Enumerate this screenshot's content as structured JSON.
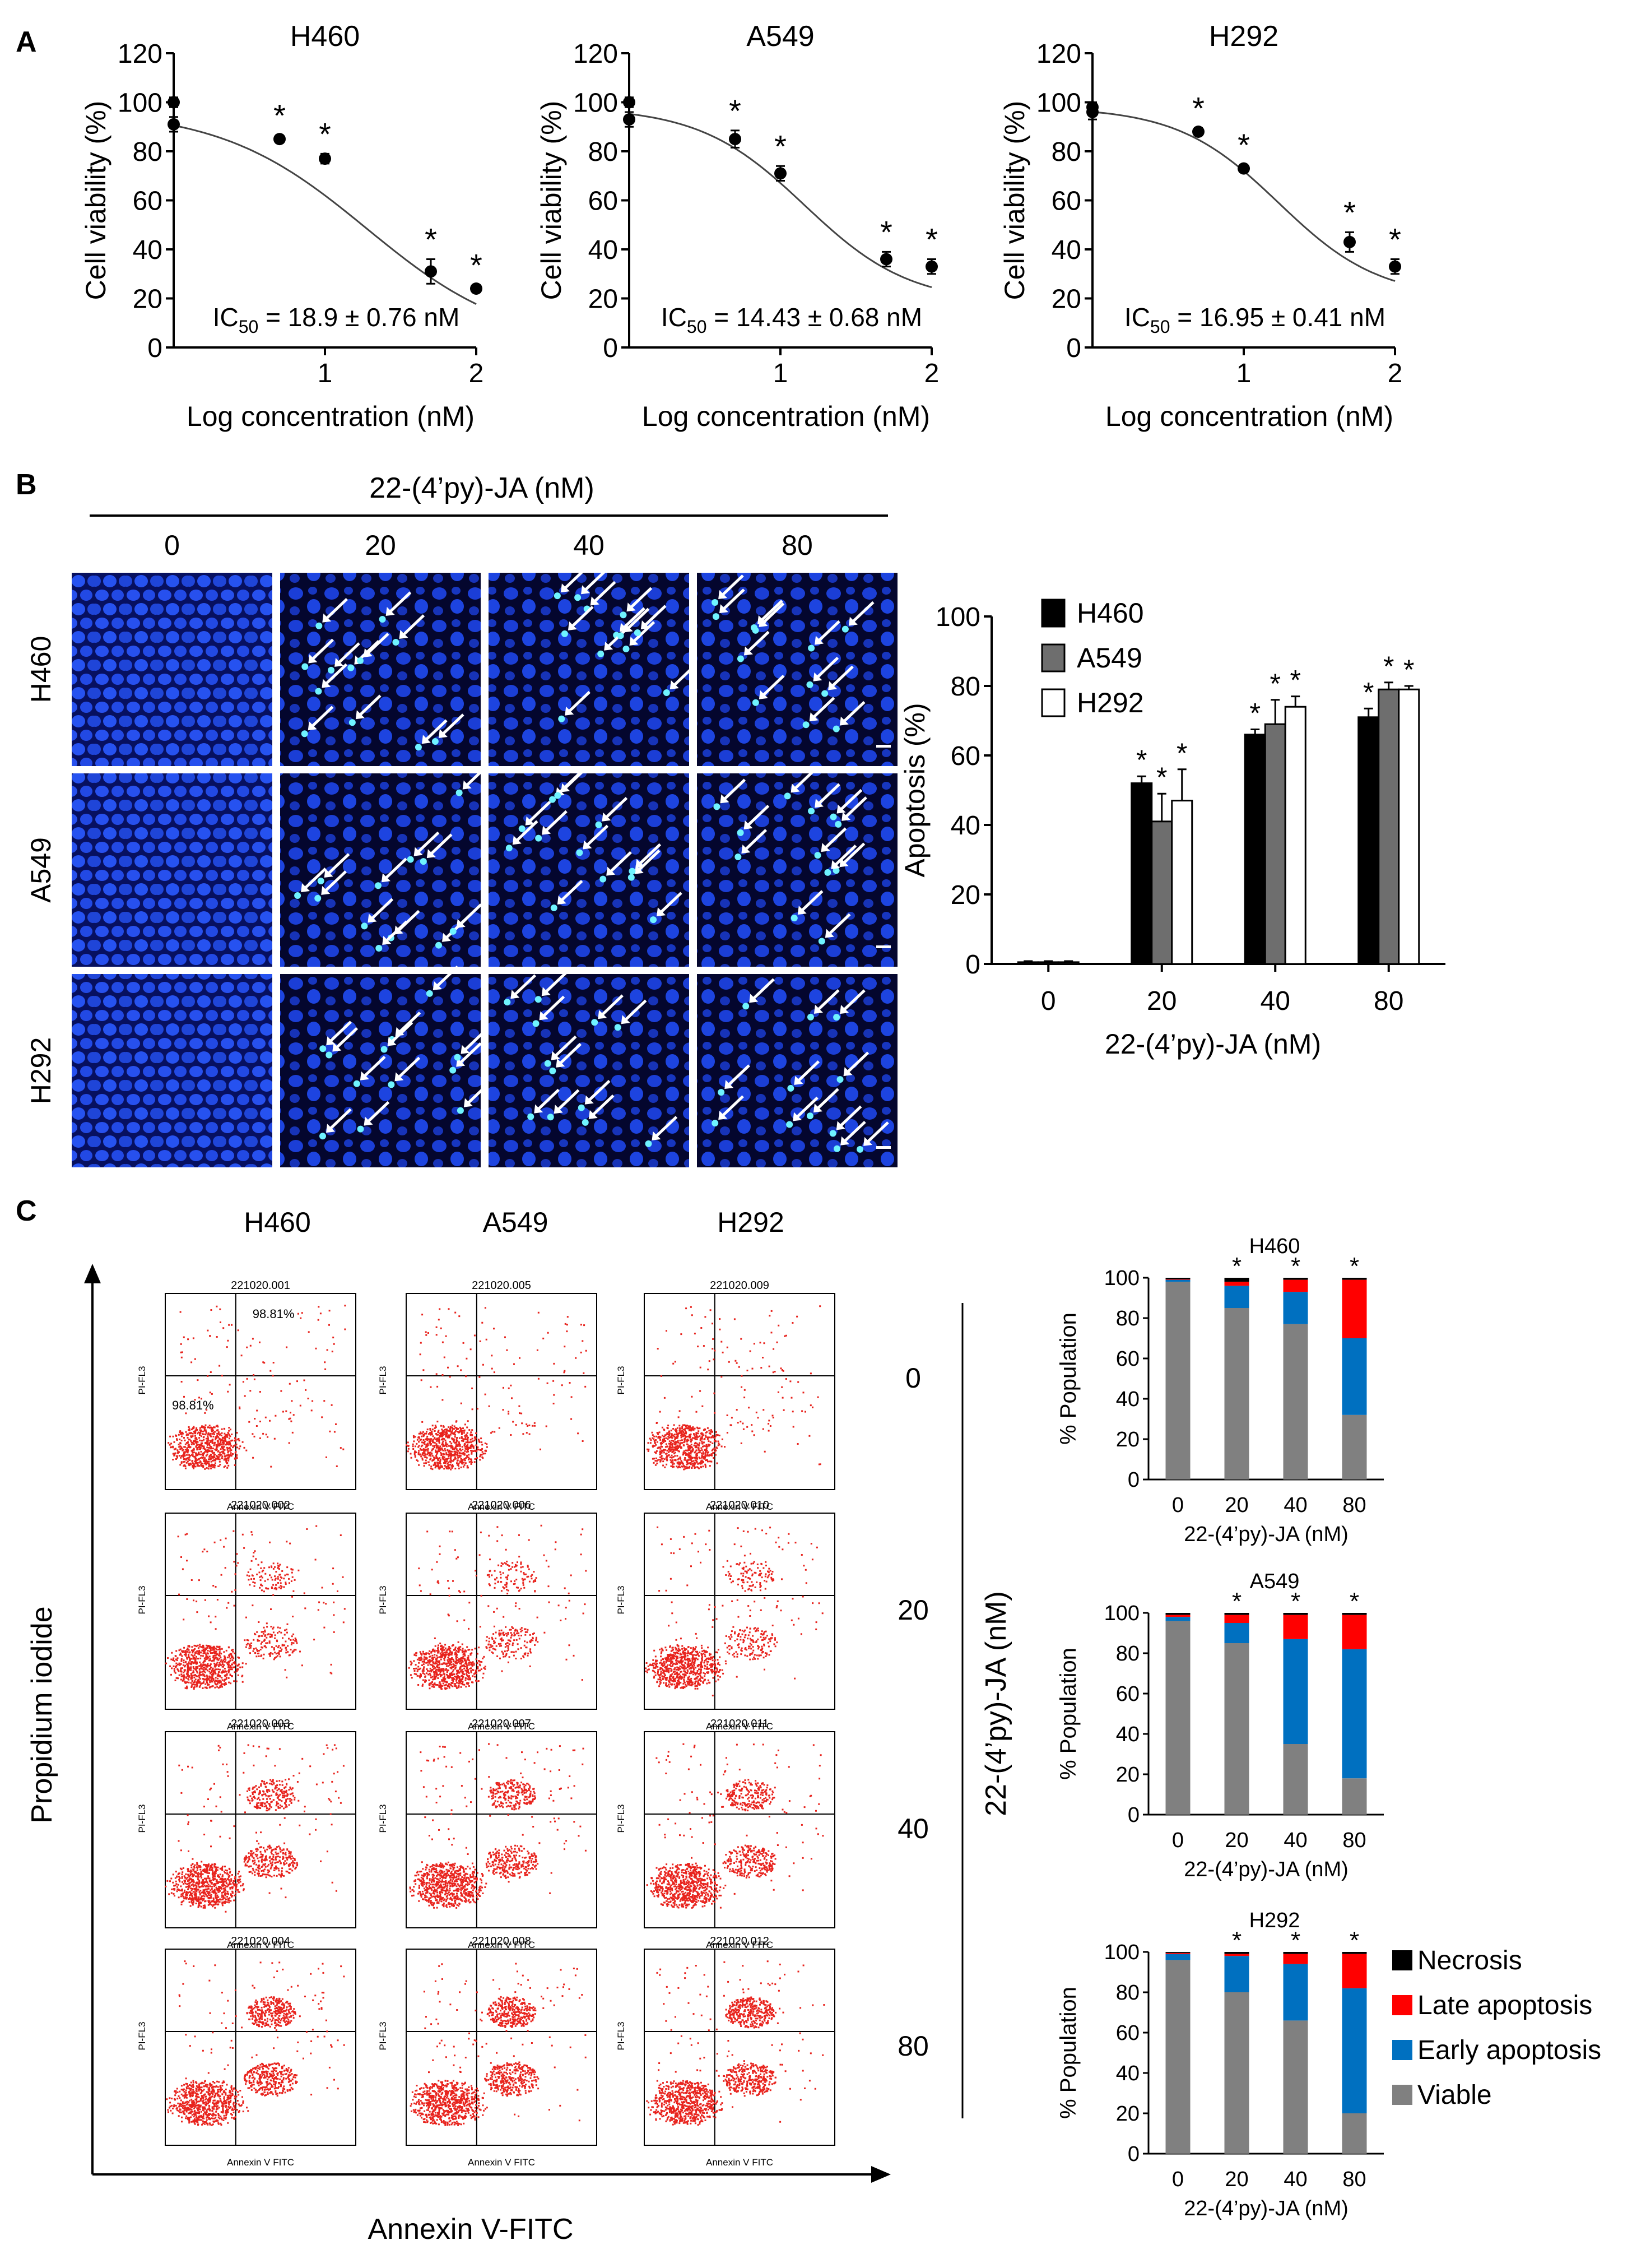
{
  "panels": {
    "A": "A",
    "B": "B",
    "C": "C"
  },
  "panel_a": {
    "charts": [
      {
        "title": "H460",
        "ylabel": "Cell viability (%)",
        "xlabel": "Log concentration (nM)",
        "yticks": [
          "0",
          "20",
          "40",
          "60",
          "80",
          "100",
          "120"
        ],
        "xticks": [
          "1",
          "2"
        ],
        "ic50_prefix": "IC",
        "ic50_sub": "50",
        "ic50_value": " = 18.9 ± 0.76 nM"
      },
      {
        "title": "A549",
        "ylabel": "Cell viability (%)",
        "xlabel": "Log concentration (nM)",
        "yticks": [
          "0",
          "20",
          "40",
          "60",
          "80",
          "100",
          "120"
        ],
        "xticks": [
          "1",
          "2"
        ],
        "ic50_prefix": "IC",
        "ic50_sub": "50",
        "ic50_value": " = 14.43 ± 0.68 nM"
      },
      {
        "title": "H292",
        "ylabel": "Cell viability (%)",
        "xlabel": "Log concentration (nM)",
        "yticks": [
          "0",
          "20",
          "40",
          "60",
          "80",
          "100",
          "120"
        ],
        "xticks": [
          "1",
          "2"
        ],
        "ic50_prefix": "IC",
        "ic50_sub": "50",
        "ic50_value": " = 16.95 ± 0.41 nM"
      }
    ]
  },
  "panel_b": {
    "treatment_label": "22-(4’py)-JA (nM)",
    "doses": [
      "0",
      "20",
      "40",
      "80"
    ],
    "cell_lines": [
      "H460",
      "A549",
      "H292"
    ],
    "bar_chart": {
      "ylabel": "Apoptosis (%)",
      "xlabel": "22-(4’py)-JA (nM)",
      "yticks": [
        "0",
        "20",
        "40",
        "60",
        "80",
        "100"
      ],
      "categories": [
        "0",
        "20",
        "40",
        "80"
      ],
      "legend": [
        "H460",
        "A549",
        "H292"
      ]
    }
  },
  "panel_c": {
    "col_headers": [
      "H460",
      "A549",
      "H292"
    ],
    "doses": [
      "0",
      "20",
      "40",
      "80"
    ],
    "dose_axis_label": "22-(4’py)-JA (nM)",
    "y_axis_label": "Propidium iodide",
    "x_axis_label": "Annexin V-FITC",
    "plot_ids": [
      [
        "221020.001",
        "221020.005",
        "221020.009"
      ],
      [
        "221020.002",
        "221020.006",
        "221020.010"
      ],
      [
        "221020.003",
        "221020.007",
        "221020.011"
      ],
      [
        "221020.004",
        "221020.008",
        "221020.012"
      ]
    ],
    "plot_ylabel": "PI-FL3",
    "plot_xlabel": "Annexin V FITC",
    "quadrant_labels": [
      "98.81%",
      "98.81%"
    ],
    "bar_charts": [
      {
        "title": "H460",
        "ylabel": "% Population",
        "xlabel": "22-(4’py)-JA (nM)",
        "yticks": [
          "0",
          "20",
          "40",
          "60",
          "80",
          "100"
        ],
        "categories": [
          "0",
          "20",
          "40",
          "80"
        ]
      },
      {
        "title": "A549",
        "ylabel": "% Population",
        "xlabel": "22-(4’py)-JA (nM)",
        "yticks": [
          "0",
          "20",
          "40",
          "60",
          "80",
          "100"
        ],
        "categories": [
          "0",
          "20",
          "40",
          "80"
        ]
      },
      {
        "title": "H292",
        "ylabel": "% Population",
        "xlabel": "22-(4’py)-JA (nM)",
        "yticks": [
          "0",
          "20",
          "40",
          "60",
          "80",
          "100"
        ],
        "categories": [
          "0",
          "20",
          "40",
          "80"
        ]
      }
    ],
    "legend": [
      {
        "label": "Necrosis",
        "color": "#000000"
      },
      {
        "label": "Late apoptosis",
        "color": "#ff0000"
      },
      {
        "label": "Early apoptosis",
        "color": "#0070c0"
      },
      {
        "label": "Viable",
        "color": "#808080"
      }
    ]
  },
  "significance_mark": "*",
  "chart_data": [
    {
      "type": "scatter",
      "title": "H460",
      "xlabel": "Log concentration (nM)",
      "ylabel": "Cell viability (%)",
      "xlim": [
        0,
        2
      ],
      "ylim": [
        0,
        120
      ],
      "x": [
        0,
        0,
        0.7,
        1.0,
        1.7,
        2.0
      ],
      "values": [
        100,
        91,
        85,
        77,
        31,
        24
      ],
      "errors": [
        2,
        3,
        1.5,
        2,
        5,
        1.5
      ],
      "significant": [
        false,
        false,
        true,
        true,
        true,
        true
      ],
      "fit": {
        "top": 97,
        "bottom": 0,
        "logIC50": 1.276,
        "hill": 0.9
      }
    },
    {
      "type": "scatter",
      "title": "A549",
      "xlabel": "Log concentration (nM)",
      "ylabel": "Cell viability (%)",
      "xlim": [
        0,
        2
      ],
      "ylim": [
        0,
        120
      ],
      "x": [
        0,
        0,
        0.7,
        1.0,
        1.7,
        2.0
      ],
      "values": [
        100,
        93,
        85,
        71,
        36,
        33
      ],
      "errors": [
        2,
        3,
        3.5,
        3,
        3,
        3
      ],
      "significant": [
        false,
        false,
        true,
        true,
        true,
        true
      ],
      "fit": {
        "top": 98,
        "bottom": 18,
        "logIC50": 1.16,
        "hill": 1.25
      }
    },
    {
      "type": "scatter",
      "title": "H292",
      "xlabel": "Log concentration (nM)",
      "ylabel": "Cell viability (%)",
      "xlim": [
        0,
        2
      ],
      "ylim": [
        0,
        120
      ],
      "x": [
        0,
        0,
        0.7,
        1.0,
        1.7,
        2.0
      ],
      "values": [
        98,
        96,
        88,
        73,
        43,
        33
      ],
      "errors": [
        2,
        3,
        1.5,
        1.5,
        4,
        3
      ],
      "significant": [
        false,
        false,
        true,
        true,
        true,
        true
      ],
      "fit": {
        "top": 98,
        "bottom": 20,
        "logIC50": 1.23,
        "hill": 1.3
      }
    },
    {
      "type": "bar",
      "xlabel": "22-(4’py)-JA (nM)",
      "ylabel": "Apoptosis (%)",
      "ylim": [
        0,
        100
      ],
      "categories": [
        "0",
        "20",
        "40",
        "80"
      ],
      "series": [
        {
          "name": "H460",
          "color": "#000000",
          "values": [
            0.5,
            52,
            66,
            71
          ],
          "errors": [
            0.3,
            2,
            1.5,
            2.5
          ]
        },
        {
          "name": "A549",
          "color": "#6e6e6e",
          "values": [
            0.5,
            41,
            69,
            79
          ],
          "errors": [
            0.3,
            8,
            7,
            2
          ]
        },
        {
          "name": "H292",
          "color": "#ffffff",
          "values": [
            0.5,
            47,
            74,
            79
          ],
          "errors": [
            0.3,
            9,
            3,
            1
          ]
        }
      ],
      "significant": [
        false,
        true,
        true,
        true
      ]
    },
    {
      "type": "bar",
      "stacked": true,
      "title": "H460",
      "xlabel": "22-(4’py)-JA (nM)",
      "ylabel": "% Population",
      "ylim": [
        0,
        100
      ],
      "categories": [
        "0",
        "20",
        "40",
        "80"
      ],
      "series": [
        {
          "name": "Viable",
          "color": "#808080",
          "values": [
            98,
            85,
            77,
            32
          ]
        },
        {
          "name": "Early apoptosis",
          "color": "#0070c0",
          "values": [
            1,
            11,
            16,
            38
          ]
        },
        {
          "name": "Late apoptosis",
          "color": "#ff0000",
          "values": [
            0.3,
            2,
            6,
            29
          ]
        },
        {
          "name": "Necrosis",
          "color": "#000000",
          "values": [
            0.7,
            2,
            1,
            1
          ]
        }
      ],
      "significant": [
        false,
        true,
        true,
        true
      ]
    },
    {
      "type": "bar",
      "stacked": true,
      "title": "A549",
      "xlabel": "22-(4’py)-JA (nM)",
      "ylabel": "% Population",
      "ylim": [
        0,
        100
      ],
      "categories": [
        "0",
        "20",
        "40",
        "80"
      ],
      "series": [
        {
          "name": "Viable",
          "color": "#808080",
          "values": [
            96,
            85,
            35,
            18
          ]
        },
        {
          "name": "Early apoptosis",
          "color": "#0070c0",
          "values": [
            2,
            10,
            52,
            64
          ]
        },
        {
          "name": "Late apoptosis",
          "color": "#ff0000",
          "values": [
            1,
            4,
            12,
            17
          ]
        },
        {
          "name": "Necrosis",
          "color": "#000000",
          "values": [
            1,
            1,
            1,
            1
          ]
        }
      ],
      "significant": [
        false,
        true,
        true,
        true
      ]
    },
    {
      "type": "bar",
      "stacked": true,
      "title": "H292",
      "xlabel": "22-(4’py)-JA (nM)",
      "ylabel": "% Population",
      "ylim": [
        0,
        100
      ],
      "categories": [
        "0",
        "20",
        "40",
        "80"
      ],
      "series": [
        {
          "name": "Viable",
          "color": "#808080",
          "values": [
            96,
            80,
            66,
            20
          ]
        },
        {
          "name": "Early apoptosis",
          "color": "#0070c0",
          "values": [
            3,
            18,
            28,
            62
          ]
        },
        {
          "name": "Late apoptosis",
          "color": "#ff0000",
          "values": [
            0.5,
            1,
            5,
            17
          ]
        },
        {
          "name": "Necrosis",
          "color": "#000000",
          "values": [
            0.5,
            1,
            1,
            1
          ]
        }
      ],
      "significant": [
        false,
        true,
        true,
        true
      ]
    }
  ]
}
